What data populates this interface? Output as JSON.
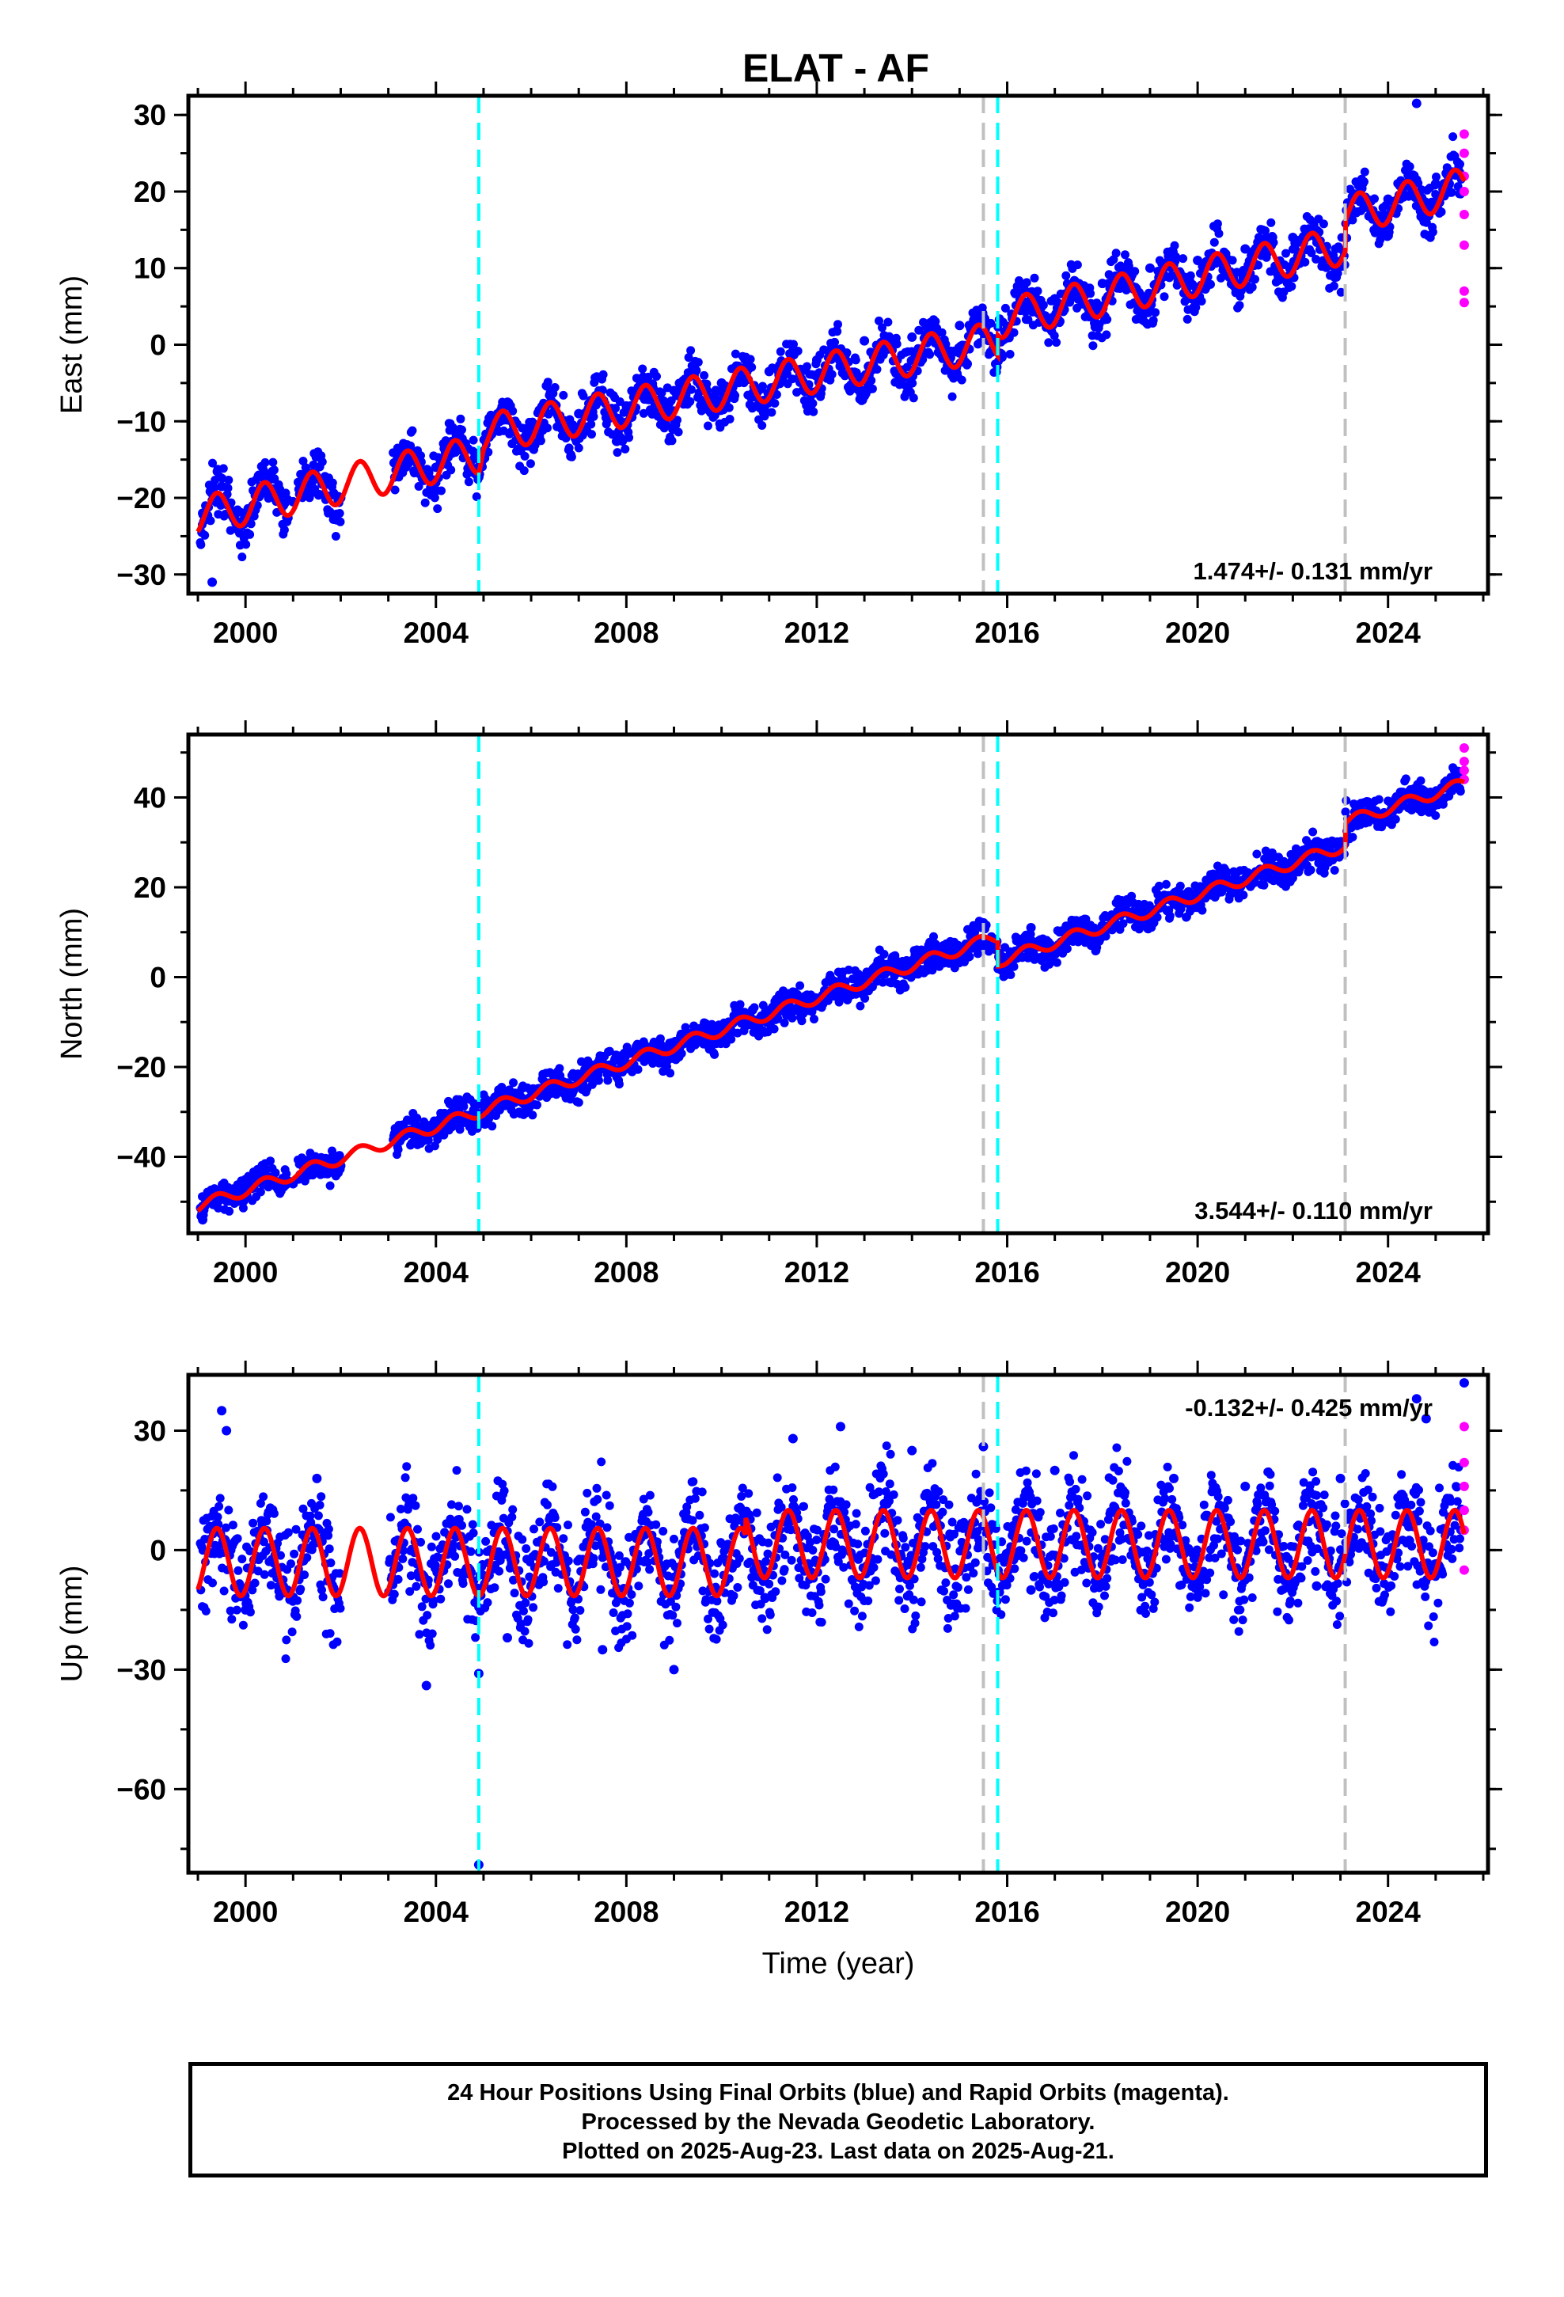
{
  "title": "ELAT - AF",
  "footer": {
    "line1": "24 Hour Positions Using Final Orbits (blue) and Rapid Orbits (magenta).",
    "line2": "Processed by the Nevada Geodetic Laboratory.",
    "line3": "Plotted on 2025-Aug-23. Last data on 2025-Aug-21."
  },
  "colors": {
    "final_orbits": "#0000ff",
    "rapid_orbits": "#ff00ff",
    "model_fit": "#ff0000",
    "equipment_change": "#00ffff",
    "earthquake_offset": "#c0c0c0"
  },
  "chart_data": [
    {
      "type": "scatter",
      "component": "east",
      "ylabel": "East (mm)",
      "xlabel": "",
      "xlim": [
        1998.8,
        2026.1
      ],
      "ylim": [
        -32.5,
        32.5
      ],
      "xticks": [
        "2000",
        "2004",
        "2008",
        "2012",
        "2016",
        "2020",
        "2024"
      ],
      "yticks": [
        "30",
        "20",
        "10",
        "0",
        "−10",
        "−20",
        "−30"
      ],
      "rate_label": "1.474+/- 0.131 mm/yr",
      "grid": false,
      "vlines_cyan": [
        2004.9,
        2015.8
      ],
      "vlines_gray": [
        2015.5,
        2023.1
      ],
      "model_trend": [
        [
          1999.0,
          -22.4
        ],
        [
          2004.9,
          -14.3
        ],
        [
          2005.0,
          -11.6
        ],
        [
          2015.5,
          0.2
        ],
        [
          2015.5,
          0.2
        ],
        [
          2015.8,
          0.6
        ],
        [
          2015.8,
          3.3
        ],
        [
          2023.1,
          13.0
        ],
        [
          2023.1,
          16.9
        ],
        [
          2025.6,
          20.6
        ]
      ],
      "seasonal_amplitude": 2.5,
      "final_orbit_points": [
        [
          1999.1,
          -22.0
        ],
        [
          1999.5,
          -18.5
        ],
        [
          2000.0,
          -22.0
        ],
        [
          2000.6,
          -17.5
        ],
        [
          2001.0,
          -20.5
        ],
        [
          2001.5,
          -16.0
        ],
        [
          2002.0,
          -20.0
        ],
        [
          2003.5,
          -14.0
        ],
        [
          2004.0,
          -16.0
        ],
        [
          2004.5,
          -13.5
        ],
        [
          2004.9,
          -15.0
        ],
        [
          2005.3,
          -9.5
        ],
        [
          2006.0,
          -11.5
        ],
        [
          2007.0,
          -9.0
        ],
        [
          2008.0,
          -8.0
        ],
        [
          2009.0,
          -6.0
        ],
        [
          2010.0,
          -5.0
        ],
        [
          2011.0,
          -3.5
        ],
        [
          2012.0,
          -2.0
        ],
        [
          2013.0,
          0.5
        ],
        [
          2014.0,
          1.0
        ],
        [
          2015.0,
          2.5
        ],
        [
          2016.3,
          5.0
        ],
        [
          2017.0,
          6.0
        ],
        [
          2018.0,
          8.0
        ],
        [
          2019.0,
          10.0
        ],
        [
          2020.0,
          11.0
        ],
        [
          2021.0,
          12.5
        ],
        [
          2022.0,
          14.0
        ],
        [
          2023.5,
          18.0
        ],
        [
          2024.0,
          19.0
        ],
        [
          2025.0,
          21.0
        ],
        [
          2025.5,
          22.5
        ],
        [
          2024.6,
          31.5
        ],
        [
          1999.3,
          -31.0
        ]
      ],
      "rapid_orbit_points": [
        [
          2025.6,
          27.5
        ],
        [
          2025.6,
          25.0
        ],
        [
          2025.6,
          22.0
        ],
        [
          2025.6,
          20.0
        ],
        [
          2025.6,
          17.0
        ],
        [
          2025.6,
          13.0
        ],
        [
          2025.6,
          7.0
        ],
        [
          2025.6,
          5.5
        ]
      ]
    },
    {
      "type": "scatter",
      "component": "north",
      "ylabel": "North (mm)",
      "xlabel": "",
      "xlim": [
        1998.8,
        2026.1
      ],
      "ylim": [
        -57,
        54
      ],
      "xticks": [
        "2000",
        "2004",
        "2008",
        "2012",
        "2016",
        "2020",
        "2024"
      ],
      "yticks": [
        "40",
        "20",
        "0",
        "−20",
        "−40"
      ],
      "rate_label": "3.544+/- 0.110 mm/yr",
      "grid": false,
      "vlines_cyan": [
        2004.9,
        2015.8
      ],
      "vlines_gray": [
        2015.5,
        2023.1
      ],
      "model_trend": [
        [
          1999.0,
          -51.0
        ],
        [
          2004.9,
          -30.0
        ],
        [
          2004.9,
          -30.0
        ],
        [
          2015.5,
          8.0
        ],
        [
          2015.5,
          8.0
        ],
        [
          2015.8,
          9.0
        ],
        [
          2015.8,
          3.5
        ],
        [
          2023.1,
          29.3
        ],
        [
          2023.1,
          34.5
        ],
        [
          2025.6,
          43.0
        ]
      ],
      "seasonal_amplitude": 1.3,
      "final_orbit_points": [
        [
          1999.1,
          -51.0
        ],
        [
          2000.0,
          -49.0
        ],
        [
          2001.0,
          -46.0
        ],
        [
          2002.0,
          -42.0
        ],
        [
          2003.5,
          -37.0
        ],
        [
          2004.5,
          -32.0
        ],
        [
          2005.5,
          -28.0
        ],
        [
          2007.0,
          -22.0
        ],
        [
          2008.5,
          -17.0
        ],
        [
          2010.0,
          -12.0
        ],
        [
          2011.5,
          -7.0
        ],
        [
          2013.0,
          -1.0
        ],
        [
          2014.5,
          4.0
        ],
        [
          2015.4,
          8.0
        ],
        [
          2016.5,
          11.0
        ],
        [
          2017.5,
          12.0
        ],
        [
          2019.0,
          15.0
        ],
        [
          2020.5,
          19.0
        ],
        [
          2022.0,
          24.0
        ],
        [
          2023.0,
          29.0
        ],
        [
          2023.5,
          36.0
        ],
        [
          2024.5,
          39.0
        ],
        [
          2025.3,
          43.0
        ],
        [
          1999.1,
          -54.0
        ]
      ],
      "rapid_orbit_points": [
        [
          2025.6,
          51.0
        ],
        [
          2025.6,
          48.0
        ],
        [
          2025.6,
          46.0
        ],
        [
          2025.6,
          44.0
        ]
      ]
    },
    {
      "type": "scatter",
      "component": "up",
      "ylabel": "Up (mm)",
      "xlabel": "Time (year)",
      "xlim": [
        1998.8,
        2026.1
      ],
      "ylim": [
        -81,
        44
      ],
      "xticks": [
        "2000",
        "2004",
        "2008",
        "2012",
        "2016",
        "2020",
        "2024"
      ],
      "yticks": [
        "30",
        "0",
        "−30",
        "−60"
      ],
      "rate_label": "-0.132+/- 0.425 mm/yr",
      "grid": false,
      "vlines_cyan": [
        2004.9,
        2015.8
      ],
      "vlines_gray": [
        2015.5,
        2023.1
      ],
      "model_trend": [
        [
          1999.0,
          -3.0
        ],
        [
          2010.5,
          -3.0
        ],
        [
          2010.5,
          1.5
        ],
        [
          2025.6,
          1.5
        ]
      ],
      "seasonal_amplitude": 8.5,
      "final_orbit_points": [
        [
          1999.5,
          35.0
        ],
        [
          1999.6,
          30.0
        ],
        [
          2000.0,
          -15.0
        ],
        [
          2001.5,
          18.0
        ],
        [
          2003.8,
          -34.0
        ],
        [
          2004.9,
          -31.0
        ],
        [
          2005.5,
          -22.0
        ],
        [
          2007.5,
          -25.0
        ],
        [
          2009.0,
          -30.0
        ],
        [
          2011.5,
          28.0
        ],
        [
          2012.5,
          31.0
        ],
        [
          2014.0,
          25.0
        ],
        [
          2015.5,
          26.0
        ],
        [
          2017.0,
          20.0
        ],
        [
          2019.5,
          18.0
        ],
        [
          2021.0,
          16.0
        ],
        [
          2023.0,
          18.0
        ],
        [
          2024.6,
          38.0
        ],
        [
          2024.8,
          33.0
        ],
        [
          2025.6,
          42.0
        ],
        [
          2004.9,
          -79.0
        ],
        [
          2016.5,
          -10.0
        ],
        [
          2020.0,
          -8.0
        ],
        [
          2022.5,
          -9.0
        ]
      ],
      "rapid_orbit_points": [
        [
          2025.6,
          31.0
        ],
        [
          2025.6,
          22.0
        ],
        [
          2025.6,
          16.0
        ],
        [
          2025.6,
          10.0
        ],
        [
          2025.6,
          5.0
        ],
        [
          2025.6,
          -5.0
        ]
      ]
    }
  ]
}
